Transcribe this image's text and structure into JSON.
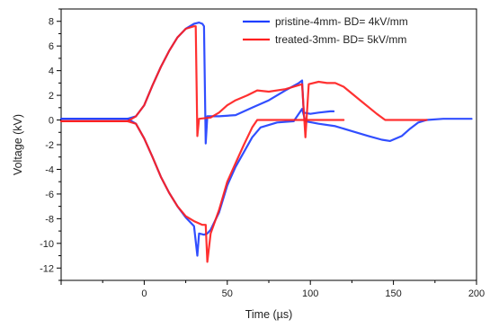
{
  "chart_data": {
    "type": "line",
    "xlabel": "Time (µs)",
    "ylabel": "Voltage (kV)",
    "xlim": [
      -50,
      200
    ],
    "ylim": [
      -13,
      9
    ],
    "xticks": [
      0,
      50,
      100,
      150,
      200
    ],
    "yticks": [
      -12,
      -10,
      -8,
      -6,
      -4,
      -2,
      0,
      2,
      4,
      6,
      8
    ],
    "legend_position": "top-right",
    "series": [
      {
        "name": "pristine-4mm- BD= 4kV/mm",
        "color": "#1f3fff",
        "segments": [
          [
            [
              -50,
              0.1
            ],
            [
              -10,
              0.1
            ],
            [
              -5,
              0.3
            ],
            [
              0,
              1.2
            ],
            [
              5,
              2.8
            ],
            [
              10,
              4.3
            ],
            [
              15,
              5.6
            ],
            [
              20,
              6.7
            ],
            [
              25,
              7.4
            ],
            [
              30,
              7.8
            ],
            [
              33,
              7.9
            ],
            [
              35,
              7.8
            ],
            [
              36,
              7.6
            ],
            [
              37,
              -1.9
            ],
            [
              38,
              0.3
            ],
            [
              45,
              0.3
            ],
            [
              55,
              0.4
            ],
            [
              65,
              1.0
            ],
            [
              75,
              1.6
            ],
            [
              85,
              2.4
            ],
            [
              93,
              3.0
            ],
            [
              95,
              3.2
            ],
            [
              96,
              0.6
            ],
            [
              100,
              0.5
            ],
            [
              105,
              0.6
            ],
            [
              112,
              0.7
            ],
            [
              114,
              0.7
            ]
          ],
          [
            [
              -50,
              0.1
            ],
            [
              -10,
              0.1
            ],
            [
              -5,
              -0.3
            ],
            [
              0,
              -1.5
            ],
            [
              5,
              -3.0
            ],
            [
              10,
              -4.6
            ],
            [
              15,
              -5.9
            ],
            [
              20,
              -7.0
            ],
            [
              25,
              -7.9
            ],
            [
              30,
              -8.6
            ],
            [
              32,
              -11.0
            ],
            [
              33,
              -9.2
            ],
            [
              36,
              -9.3
            ],
            [
              38,
              -9.2
            ],
            [
              40,
              -8.9
            ],
            [
              45,
              -7.5
            ],
            [
              50,
              -5.3
            ],
            [
              55,
              -3.8
            ],
            [
              60,
              -2.6
            ],
            [
              65,
              -1.4
            ],
            [
              70,
              -0.6
            ],
            [
              80,
              -0.2
            ],
            [
              90,
              -0.1
            ],
            [
              95,
              0.9
            ],
            [
              97,
              -0.1
            ],
            [
              105,
              -0.3
            ],
            [
              115,
              -0.5
            ],
            [
              125,
              -0.9
            ],
            [
              135,
              -1.3
            ],
            [
              143,
              -1.6
            ],
            [
              148,
              -1.7
            ],
            [
              155,
              -1.3
            ],
            [
              160,
              -0.7
            ],
            [
              165,
              -0.2
            ],
            [
              170,
              0.0
            ],
            [
              180,
              0.1
            ],
            [
              195,
              0.1
            ],
            [
              197,
              0.1
            ]
          ]
        ]
      },
      {
        "name": "treated-3mm- BD= 5kV/mm",
        "color": "#ff2020",
        "segments": [
          [
            [
              -50,
              -0.1
            ],
            [
              -10,
              -0.1
            ],
            [
              -5,
              0.3
            ],
            [
              0,
              1.2
            ],
            [
              5,
              2.8
            ],
            [
              10,
              4.3
            ],
            [
              15,
              5.6
            ],
            [
              20,
              6.7
            ],
            [
              25,
              7.4
            ],
            [
              30,
              7.6
            ],
            [
              31,
              7.6
            ],
            [
              32,
              -1.3
            ],
            [
              33,
              0.1
            ],
            [
              40,
              0.2
            ],
            [
              45,
              0.6
            ],
            [
              50,
              1.2
            ],
            [
              55,
              1.6
            ],
            [
              62,
              2.0
            ],
            [
              68,
              2.4
            ],
            [
              75,
              2.3
            ],
            [
              85,
              2.5
            ],
            [
              95,
              2.9
            ],
            [
              97,
              -1.4
            ],
            [
              99,
              2.9
            ],
            [
              105,
              3.1
            ],
            [
              110,
              3.0
            ],
            [
              115,
              3.0
            ],
            [
              120,
              2.7
            ],
            [
              130,
              1.6
            ],
            [
              140,
              0.5
            ],
            [
              145,
              0.0
            ],
            [
              160,
              0.0
            ],
            [
              170,
              0.0
            ]
          ],
          [
            [
              -50,
              -0.1
            ],
            [
              -10,
              -0.1
            ],
            [
              -5,
              -0.3
            ],
            [
              0,
              -1.5
            ],
            [
              5,
              -3.0
            ],
            [
              10,
              -4.6
            ],
            [
              15,
              -5.9
            ],
            [
              20,
              -7.0
            ],
            [
              25,
              -7.8
            ],
            [
              30,
              -8.2
            ],
            [
              35,
              -8.5
            ],
            [
              37,
              -8.5
            ],
            [
              38,
              -11.5
            ],
            [
              40,
              -9.2
            ],
            [
              45,
              -7.3
            ],
            [
              50,
              -5.0
            ],
            [
              55,
              -3.5
            ],
            [
              60,
              -2.0
            ],
            [
              65,
              -0.6
            ],
            [
              68,
              0.0
            ],
            [
              75,
              0.0
            ],
            [
              85,
              0.0
            ],
            [
              95,
              0.0
            ],
            [
              100,
              0.0
            ],
            [
              110,
              0.0
            ],
            [
              120,
              0.0
            ]
          ]
        ]
      }
    ]
  }
}
